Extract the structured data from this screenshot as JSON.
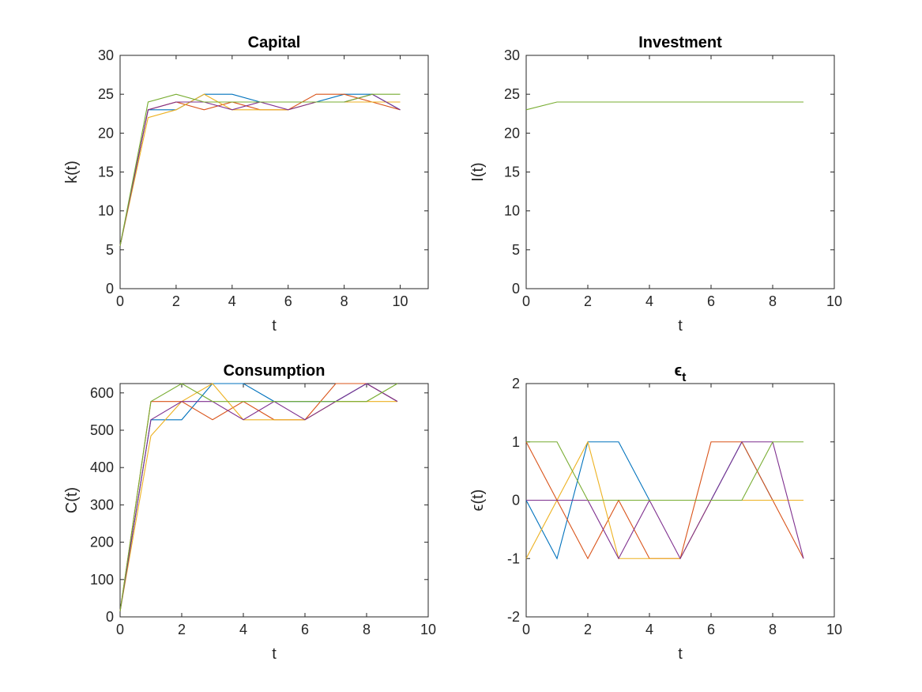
{
  "chart_data": [
    {
      "type": "line",
      "title": "Capital",
      "xlabel": "t",
      "ylabel": "k(t)",
      "xlim": [
        0,
        11
      ],
      "ylim": [
        0,
        30
      ],
      "xticks": [
        0,
        2,
        4,
        6,
        8,
        10
      ],
      "yticks": [
        0,
        5,
        10,
        15,
        20,
        25,
        30
      ],
      "xtick_labels": [
        "0",
        "2",
        "4",
        "6",
        "8",
        "10"
      ],
      "ytick_labels": [
        "0",
        "5",
        "10",
        "15",
        "20",
        "25",
        "30"
      ],
      "grid": false,
      "x": [
        0,
        1,
        2,
        3,
        4,
        5,
        6,
        7,
        8,
        9,
        10
      ],
      "series": [
        {
          "color": "#0072BD",
          "values": [
            5.5,
            23,
            23,
            25,
            25,
            24,
            24,
            24,
            25,
            25,
            23
          ]
        },
        {
          "color": "#D95319",
          "values": [
            5.5,
            23,
            24,
            23,
            24,
            23,
            23,
            25,
            25,
            24,
            23
          ]
        },
        {
          "color": "#EDB120",
          "values": [
            5.5,
            22,
            23,
            25,
            23,
            23,
            23,
            24,
            24,
            24,
            24
          ]
        },
        {
          "color": "#7E2F8E",
          "values": [
            5.5,
            23,
            24,
            24,
            23,
            24,
            23,
            24,
            24,
            25,
            23
          ]
        },
        {
          "color": "#77AC30",
          "values": [
            5.5,
            24,
            25,
            24,
            24,
            24,
            24,
            24,
            24,
            25,
            25
          ]
        }
      ]
    },
    {
      "type": "line",
      "title": "Investment",
      "xlabel": "t",
      "ylabel": "I(t)",
      "xlim": [
        0,
        10
      ],
      "ylim": [
        0,
        30
      ],
      "xticks": [
        0,
        2,
        4,
        6,
        8,
        10
      ],
      "yticks": [
        0,
        5,
        10,
        15,
        20,
        25,
        30
      ],
      "xtick_labels": [
        "0",
        "2",
        "4",
        "6",
        "8",
        "10"
      ],
      "ytick_labels": [
        "0",
        "5",
        "10",
        "15",
        "20",
        "25",
        "30"
      ],
      "grid": false,
      "x": [
        0,
        1,
        2,
        3,
        4,
        5,
        6,
        7,
        8,
        9
      ],
      "series": [
        {
          "color": "#77AC30",
          "values": [
            23,
            24,
            24,
            24,
            24,
            24,
            24,
            24,
            24,
            24
          ]
        }
      ]
    },
    {
      "type": "line",
      "title": "Consumption",
      "xlabel": "t",
      "ylabel": "C(t)",
      "xlim": [
        0,
        10
      ],
      "ylim": [
        0,
        625
      ],
      "xticks": [
        0,
        2,
        4,
        6,
        8,
        10
      ],
      "yticks": [
        0,
        100,
        200,
        300,
        400,
        500,
        600
      ],
      "xtick_labels": [
        "0",
        "2",
        "4",
        "6",
        "8",
        "10"
      ],
      "ytick_labels": [
        "0",
        "100",
        "200",
        "300",
        "400",
        "500",
        "600"
      ],
      "grid": false,
      "x": [
        0,
        1,
        2,
        3,
        4,
        5,
        6,
        7,
        8,
        9
      ],
      "series": [
        {
          "color": "#0072BD",
          "values": [
            15,
            528,
            528,
            625,
            625,
            577,
            577,
            577,
            625,
            577
          ]
        },
        {
          "color": "#D95319",
          "values": [
            15,
            577,
            577,
            528,
            577,
            528,
            528,
            625,
            625,
            577
          ]
        },
        {
          "color": "#EDB120",
          "values": [
            15,
            485,
            577,
            625,
            528,
            528,
            528,
            577,
            577,
            577
          ]
        },
        {
          "color": "#7E2F8E",
          "values": [
            15,
            528,
            577,
            577,
            528,
            577,
            528,
            577,
            625,
            577
          ]
        },
        {
          "color": "#77AC30",
          "values": [
            15,
            577,
            625,
            577,
            577,
            577,
            577,
            577,
            577,
            625
          ]
        }
      ]
    },
    {
      "type": "line",
      "title": "ϵ",
      "title_subscript": "t",
      "xlabel": "t",
      "ylabel": "ϵ(t)",
      "xlim": [
        0,
        10
      ],
      "ylim": [
        -2,
        2
      ],
      "xticks": [
        0,
        2,
        4,
        6,
        8,
        10
      ],
      "yticks": [
        -2,
        -1,
        0,
        1,
        2
      ],
      "xtick_labels": [
        "0",
        "2",
        "4",
        "6",
        "8",
        "10"
      ],
      "ytick_labels": [
        "-2",
        "-1",
        "0",
        "1",
        "2"
      ],
      "grid": false,
      "x": [
        0,
        1,
        2,
        3,
        4,
        5,
        6,
        7,
        8,
        9
      ],
      "series": [
        {
          "color": "#0072BD",
          "values": [
            0,
            -1,
            1,
            1,
            0,
            0,
            0,
            1,
            0,
            0
          ]
        },
        {
          "color": "#D95319",
          "values": [
            1,
            0,
            -1,
            0,
            -1,
            -1,
            1,
            1,
            0,
            -1
          ]
        },
        {
          "color": "#EDB120",
          "values": [
            -1,
            0,
            1,
            -1,
            -1,
            -1,
            0,
            0,
            0,
            0
          ]
        },
        {
          "color": "#7E2F8E",
          "values": [
            0,
            0,
            0,
            -1,
            0,
            -1,
            0,
            1,
            1,
            -1
          ]
        },
        {
          "color": "#77AC30",
          "values": [
            1,
            1,
            0,
            0,
            0,
            0,
            0,
            0,
            1,
            1
          ]
        }
      ]
    }
  ]
}
